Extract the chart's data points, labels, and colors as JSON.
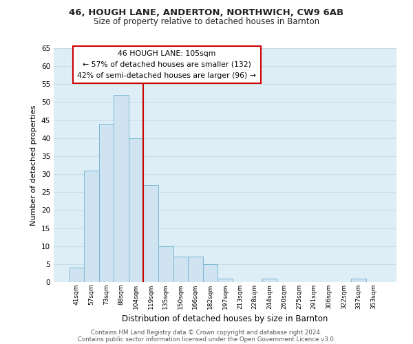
{
  "title1": "46, HOUGH LANE, ANDERTON, NORTHWICH, CW9 6AB",
  "title2": "Size of property relative to detached houses in Barnton",
  "xlabel": "Distribution of detached houses by size in Barnton",
  "ylabel": "Number of detached properties",
  "bin_labels": [
    "41sqm",
    "57sqm",
    "73sqm",
    "88sqm",
    "104sqm",
    "119sqm",
    "135sqm",
    "150sqm",
    "166sqm",
    "182sqm",
    "197sqm",
    "213sqm",
    "228sqm",
    "244sqm",
    "260sqm",
    "275sqm",
    "291sqm",
    "306sqm",
    "322sqm",
    "337sqm",
    "353sqm"
  ],
  "bar_values": [
    4,
    31,
    44,
    52,
    40,
    27,
    10,
    7,
    7,
    5,
    1,
    0,
    0,
    1,
    0,
    0,
    0,
    0,
    0,
    1,
    0
  ],
  "bar_color": "#cfe4f0",
  "bar_edge_color": "#7ab8d4",
  "red_line_color": "#cc0000",
  "red_line_x": 4.5,
  "annotation_title": "46 HOUGH LANE: 105sqm",
  "annotation_line1": "← 57% of detached houses are smaller (132)",
  "annotation_line2": "42% of semi-detached houses are larger (96) →",
  "annotation_box_color": "#ffffff",
  "annotation_box_edge": "#cc0000",
  "ylim": [
    0,
    65
  ],
  "yticks": [
    0,
    5,
    10,
    15,
    20,
    25,
    30,
    35,
    40,
    45,
    50,
    55,
    60,
    65
  ],
  "footer1": "Contains HM Land Registry data © Crown copyright and database right 2024.",
  "footer2": "Contains public sector information licensed under the Open Government Licence v3.0.",
  "bg_color": "#ffffff",
  "grid_color": "#c8dce8",
  "plot_bg_color": "#ddeef7"
}
